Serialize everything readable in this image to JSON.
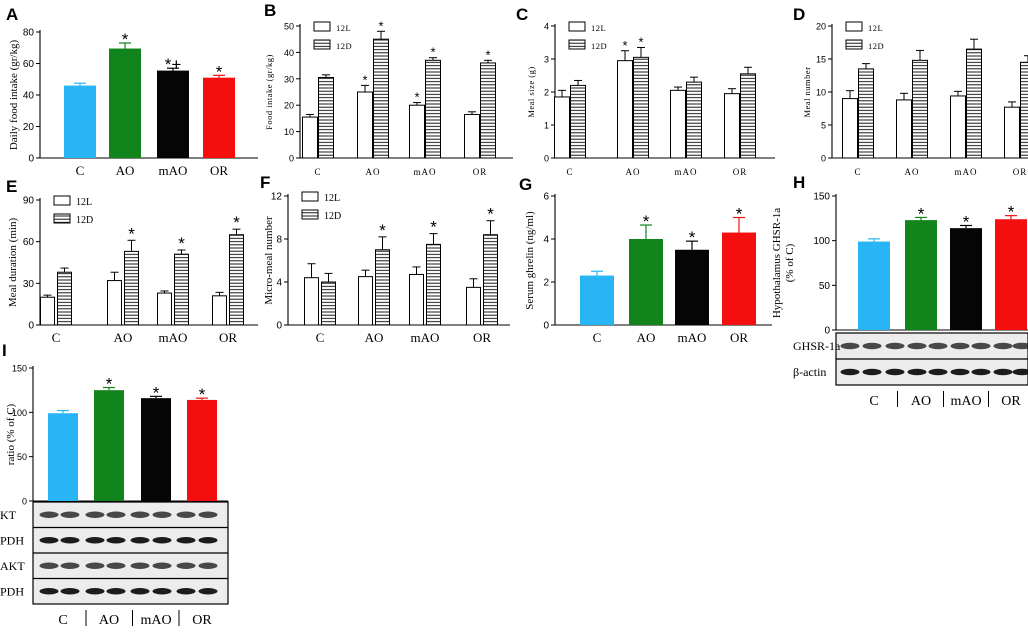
{
  "colors": {
    "C": "#29b5f5",
    "AO": "#11841c",
    "mAO": "#050505",
    "OR": "#f50e0e",
    "axis": "#000000",
    "light_bar": "#ffffff"
  },
  "chart_data": [
    {
      "id": "A",
      "type": "bar",
      "label": "A",
      "ylabel": "Daily food intake (gr/kg)",
      "ylim": [
        0,
        80
      ],
      "yticks": [
        0,
        20,
        40,
        60,
        80
      ],
      "categories": [
        "C",
        "AO",
        "mAO",
        "OR"
      ],
      "values": [
        46,
        69.5,
        55.5,
        51
      ],
      "errors": [
        1.5,
        3.5,
        1.5,
        1.5
      ],
      "annotations": [
        "",
        "*",
        "*+",
        "*"
      ]
    },
    {
      "id": "B",
      "type": "bar",
      "label": "B",
      "ylabel": "Food intake (gr/kg)",
      "ylim": [
        0,
        50
      ],
      "yticks": [
        0,
        10,
        20,
        30,
        40,
        50
      ],
      "categories": [
        "C",
        "AO",
        "mAO",
        "OR"
      ],
      "legend": [
        "12L",
        "12D"
      ],
      "series": [
        {
          "name": "12L",
          "values": [
            15.5,
            25,
            20,
            16.5
          ],
          "errors": [
            1,
            2.5,
            1,
            1
          ],
          "annotations": [
            "",
            "*",
            "*",
            ""
          ]
        },
        {
          "name": "12D",
          "values": [
            30.5,
            45,
            37,
            36
          ],
          "errors": [
            1,
            3,
            1,
            1
          ],
          "annotations": [
            "",
            "*",
            "*",
            "*"
          ]
        }
      ]
    },
    {
      "id": "C",
      "type": "bar",
      "label": "C",
      "ylabel": "Meal size (g)",
      "ylim": [
        0,
        4
      ],
      "yticks": [
        0,
        1,
        2,
        3,
        4
      ],
      "categories": [
        "C",
        "AO",
        "mAO",
        "OR"
      ],
      "legend": [
        "12L",
        "12D"
      ],
      "series": [
        {
          "name": "12L",
          "values": [
            1.85,
            2.95,
            2.05,
            1.95
          ],
          "errors": [
            0.2,
            0.3,
            0.1,
            0.15
          ],
          "annotations": [
            "",
            "*",
            "",
            ""
          ]
        },
        {
          "name": "12D",
          "values": [
            2.2,
            3.05,
            2.3,
            2.55
          ],
          "errors": [
            0.15,
            0.3,
            0.15,
            0.2
          ],
          "annotations": [
            "",
            "*",
            "",
            ""
          ]
        }
      ]
    },
    {
      "id": "D",
      "type": "bar",
      "label": "D",
      "ylabel": "Meal number",
      "ylim": [
        0,
        20
      ],
      "yticks": [
        0,
        5,
        10,
        15,
        20
      ],
      "categories": [
        "C",
        "AO",
        "mAO",
        "OR"
      ],
      "legend": [
        "12L",
        "12D"
      ],
      "series": [
        {
          "name": "12L",
          "values": [
            9,
            8.8,
            9.4,
            7.7
          ],
          "errors": [
            1.2,
            1,
            0.7,
            0.8
          ],
          "annotations": [
            "",
            "",
            "",
            ""
          ]
        },
        {
          "name": "12D",
          "values": [
            13.5,
            14.8,
            16.5,
            14.5
          ],
          "errors": [
            0.8,
            1.5,
            1.5,
            1
          ],
          "annotations": [
            "",
            "",
            "",
            ""
          ]
        }
      ]
    },
    {
      "id": "E",
      "type": "bar",
      "label": "E",
      "ylabel": "Meal duration (min)",
      "ylim": [
        0,
        90
      ],
      "yticks": [
        0,
        30,
        60,
        90
      ],
      "categories": [
        "C",
        "AO",
        "mAO",
        "OR"
      ],
      "legend": [
        "12L",
        "12D"
      ],
      "series": [
        {
          "name": "12L",
          "values": [
            20,
            32,
            23,
            21
          ],
          "errors": [
            1.5,
            6,
            1.5,
            2.5
          ],
          "annotations": [
            "",
            "",
            "",
            ""
          ]
        },
        {
          "name": "12D",
          "values": [
            38,
            53,
            51,
            65
          ],
          "errors": [
            3,
            8,
            3,
            4
          ],
          "annotations": [
            "",
            "*",
            "*",
            "*"
          ]
        }
      ]
    },
    {
      "id": "F",
      "type": "bar",
      "label": "F",
      "ylabel": "Micro-meal number",
      "ylim": [
        0,
        12
      ],
      "yticks": [
        0,
        4,
        8,
        12
      ],
      "categories": [
        "C",
        "AO",
        "mAO",
        "OR"
      ],
      "legend": [
        "12L",
        "12D"
      ],
      "series": [
        {
          "name": "12L",
          "values": [
            4.4,
            4.5,
            4.7,
            3.5
          ],
          "errors": [
            1.3,
            0.6,
            0.7,
            0.8
          ],
          "annotations": [
            "",
            "",
            "",
            ""
          ]
        },
        {
          "name": "12D",
          "values": [
            4,
            7,
            7.5,
            8.4
          ],
          "errors": [
            0.8,
            1.2,
            1,
            1.3
          ],
          "annotations": [
            "",
            "*",
            "*",
            "*"
          ]
        }
      ]
    },
    {
      "id": "G",
      "type": "bar",
      "label": "G",
      "ylabel": "Serum ghrelin (ng/ml)",
      "ylim": [
        0,
        6
      ],
      "yticks": [
        0,
        2,
        4,
        6
      ],
      "categories": [
        "C",
        "AO",
        "mAO",
        "OR"
      ],
      "values": [
        2.3,
        4,
        3.5,
        4.3
      ],
      "errors": [
        0.2,
        0.65,
        0.4,
        0.7
      ],
      "annotations": [
        "",
        "*",
        "*",
        "*"
      ]
    },
    {
      "id": "H",
      "type": "bar",
      "label": "H",
      "ylabel": [
        "Hypothalamus GHSR-1a",
        "(% of C)"
      ],
      "ylim": [
        0,
        150
      ],
      "yticks": [
        0,
        50,
        100,
        150
      ],
      "categories": [
        "C",
        "AO",
        "mAO",
        "OR"
      ],
      "values": [
        99,
        123,
        114,
        124
      ],
      "errors": [
        3,
        3,
        3,
        4
      ],
      "annotations": [
        "",
        "*",
        "*",
        "*"
      ],
      "blot": {
        "rows": [
          "GHSR-1a",
          "β-actin"
        ],
        "lanes": [
          "C",
          "AO",
          "mAO",
          "OR"
        ]
      }
    },
    {
      "id": "I",
      "type": "bar",
      "label": "I",
      "ylabel": "ratio (% of C)",
      "ylim": [
        0,
        150
      ],
      "yticks": [
        0,
        50,
        100,
        150
      ],
      "categories": [
        "C",
        "AO",
        "mAO",
        "OR"
      ],
      "values": [
        99,
        125,
        116,
        114
      ],
      "errors": [
        3,
        3,
        2,
        2
      ],
      "annotations": [
        "",
        "*",
        "*",
        "*"
      ],
      "blot": {
        "rows": [
          "KT",
          "PDH",
          "AKT",
          "PDH"
        ],
        "lanes": [
          "C",
          "AO",
          "mAO",
          "OR"
        ]
      }
    }
  ]
}
